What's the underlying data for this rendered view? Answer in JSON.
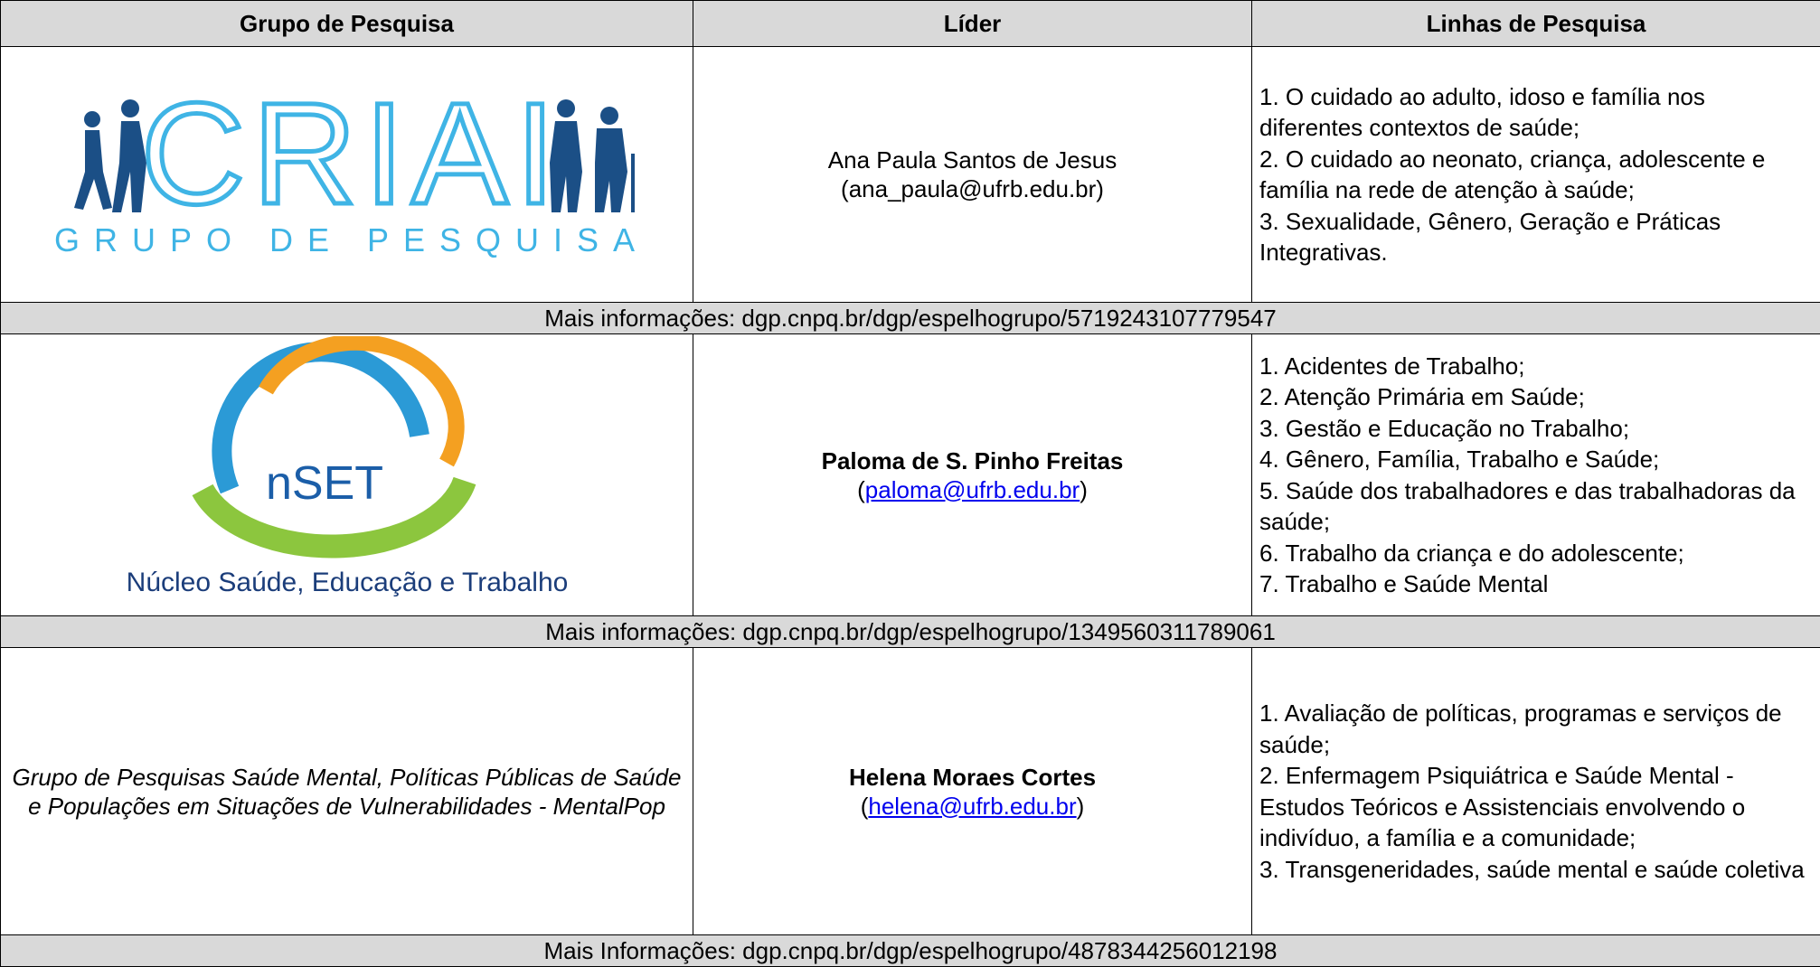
{
  "header": [
    "Grupo de Pesquisa",
    "Líder",
    "Linhas de Pesquisa"
  ],
  "groups": [
    {
      "logo_title": "CRIAI",
      "logo_subtitle": "GRUPO DE PESQUISA",
      "leader": "Ana Paula Santos de Jesus",
      "email": "(ana_paula@ufrb.edu.br)",
      "lines": [
        "1. O cuidado ao adulto, idoso e família nos diferentes contextos de saúde;",
        "2. O cuidado ao neonato, criança, adolescente e família na rede de atenção à saúde;",
        "3. Sexualidade, Gênero, Geração e Práticas Integrativas."
      ],
      "info": "Mais informações: dgp.cnpq.br/dgp/espelhogrupo/5719243107779547"
    },
    {
      "logo_title": "nSET",
      "logo_subtitle": "Núcleo Saúde, Educação e Trabalho",
      "leader": "Paloma de S. Pinho Freitas",
      "email_prefix": "(",
      "email": "paloma@ufrb.edu.br",
      "email_suffix": ")",
      "lines": [
        "1. Acidentes de Trabalho;",
        "2. Atenção Primária em Saúde;",
        "3. Gestão e Educação no Trabalho;",
        "4. Gênero, Família, Trabalho e Saúde;",
        "5. Saúde dos trabalhadores e das trabalhadoras da saúde;",
        "6. Trabalho da criança e do adolescente;",
        "7. Trabalho e Saúde Mental"
      ],
      "info": "Mais informações: dgp.cnpq.br/dgp/espelhogrupo/1349560311789061"
    },
    {
      "name": "Grupo de Pesquisas Saúde Mental, Políticas Públicas de Saúde e Populações em Situações de Vulnerabilidades - MentalPop",
      "leader": "Helena Moraes Cortes",
      "email_prefix": "(",
      "email": "helena@ufrb.edu.br",
      "email_suffix": ")",
      "lines": [
        "1. Avaliação de políticas, programas e serviços de saúde;",
        "2. Enfermagem Psiquiátrica e Saúde Mental - Estudos Teóricos e Assistenciais envolvendo o indivíduo, a família e a comunidade;",
        "3. Transgeneridades, saúde mental e saúde coletiva"
      ],
      "info": "Mais Informações: dgp.cnpq.br/dgp/espelhogrupo/4878344256012198"
    }
  ]
}
